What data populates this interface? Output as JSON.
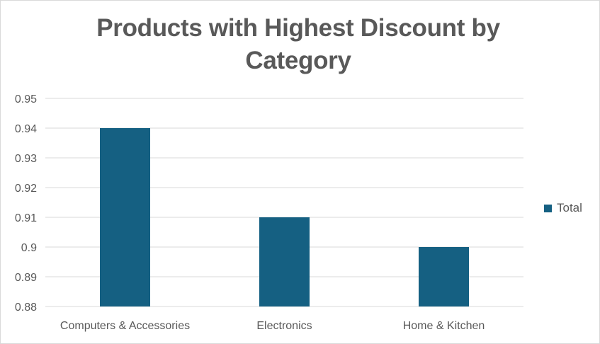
{
  "chart_data": {
    "type": "bar",
    "title": "Products with Highest Discount by Category",
    "categories": [
      "Computers & Accessories",
      "Electronics",
      "Home & Kitchen"
    ],
    "series": [
      {
        "name": "Total",
        "values": [
          0.94,
          0.91,
          0.9
        ],
        "color": "#156082"
      }
    ],
    "ylim": [
      0.88,
      0.95
    ],
    "yticks": [
      "0.88",
      "0.89",
      "0.9",
      "0.91",
      "0.92",
      "0.93",
      "0.94",
      "0.95"
    ],
    "grid": true,
    "legend_position": "right"
  },
  "colors": {
    "gridline": "#d9d9d9",
    "axis_text": "#595959"
  }
}
